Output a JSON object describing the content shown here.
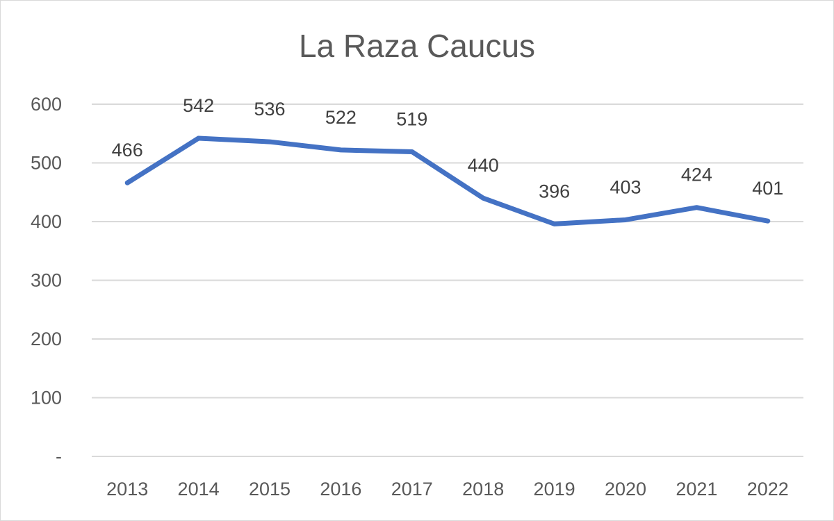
{
  "chart_data": {
    "type": "line",
    "title": "La Raza Caucus",
    "xlabel": "",
    "ylabel": "",
    "categories": [
      "2013",
      "2014",
      "2015",
      "2016",
      "2017",
      "2018",
      "2019",
      "2020",
      "2021",
      "2022"
    ],
    "values": [
      466,
      542,
      536,
      522,
      519,
      440,
      396,
      403,
      424,
      401
    ],
    "data_labels": [
      "466",
      "542",
      "536",
      "522",
      "519",
      "440",
      "396",
      "403",
      "424",
      "401"
    ],
    "yticks": [
      0,
      100,
      200,
      300,
      400,
      500,
      600
    ],
    "ytick_labels": [
      "-",
      "100",
      "200",
      "300",
      "400",
      "500",
      "600"
    ],
    "ylim": [
      0,
      600
    ],
    "grid": true,
    "legend": "none",
    "line_color": "#4472c4",
    "gridline_color": "#d9d9d9"
  }
}
